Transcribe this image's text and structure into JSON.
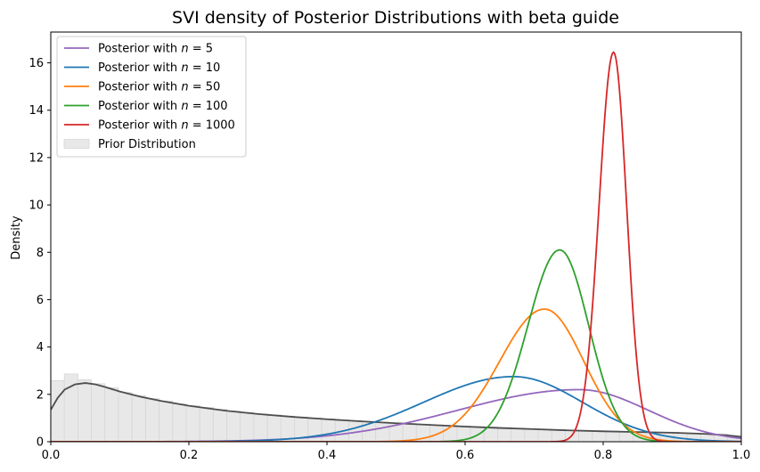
{
  "chart_data": {
    "type": "line",
    "title": "SVI density of Posterior Distributions with beta guide",
    "xlabel": "",
    "ylabel": "Density",
    "xlim": [
      0.0,
      1.0
    ],
    "ylim": [
      0,
      17.3
    ],
    "xticks": [
      0.0,
      0.2,
      0.4,
      0.6,
      0.8,
      1.0
    ],
    "xtick_labels": [
      "0.0",
      "0.2",
      "0.4",
      "0.6",
      "0.8",
      "1.0"
    ],
    "yticks": [
      0,
      2,
      4,
      6,
      8,
      10,
      12,
      14,
      16
    ],
    "ytick_labels": [
      "0",
      "2",
      "4",
      "6",
      "8",
      "10",
      "12",
      "14",
      "16"
    ],
    "legend_position": "top-left",
    "series": [
      {
        "name": "Posterior with",
        "n_label": "n = 5",
        "color": "#9467bd",
        "peak_x": 0.765,
        "peak_y": 2.2,
        "sd_left": 0.175,
        "sd_right": 0.1,
        "power": 2,
        "right_end_y": 0.22
      },
      {
        "name": "Posterior with",
        "n_label": "n = 10",
        "color": "#1f77b4",
        "peak_x": 0.67,
        "peak_y": 2.75,
        "sd_left": 0.13,
        "sd_right": 0.1,
        "power": 2
      },
      {
        "name": "Posterior with",
        "n_label": "n = 50",
        "color": "#ff7f0e",
        "peak_x": 0.715,
        "peak_y": 5.6,
        "sd_left": 0.065,
        "sd_right": 0.057,
        "power": 2
      },
      {
        "name": "Posterior with",
        "n_label": "n = 100",
        "color": "#2ca02c",
        "peak_x": 0.737,
        "peak_y": 8.1,
        "sd_left": 0.046,
        "sd_right": 0.042,
        "power": 2
      },
      {
        "name": "Posterior with",
        "n_label": "n = 1000",
        "color": "#d62728",
        "peak_x": 0.815,
        "peak_y": 16.45,
        "sd_left": 0.021,
        "sd_right": 0.019,
        "power": 2
      }
    ],
    "prior": {
      "label": "Prior Distribution",
      "kde_color": "#4d4d4d",
      "hist_fill": "#e8e8e8",
      "hist_edge": "#d6d6d6",
      "kde_points": [
        [
          0.0,
          1.35
        ],
        [
          0.01,
          1.85
        ],
        [
          0.02,
          2.2
        ],
        [
          0.035,
          2.42
        ],
        [
          0.05,
          2.48
        ],
        [
          0.065,
          2.42
        ],
        [
          0.08,
          2.3
        ],
        [
          0.1,
          2.12
        ],
        [
          0.13,
          1.9
        ],
        [
          0.16,
          1.72
        ],
        [
          0.2,
          1.52
        ],
        [
          0.25,
          1.32
        ],
        [
          0.3,
          1.17
        ],
        [
          0.35,
          1.05
        ],
        [
          0.4,
          0.95
        ],
        [
          0.45,
          0.86
        ],
        [
          0.5,
          0.78
        ],
        [
          0.55,
          0.71
        ],
        [
          0.6,
          0.64
        ],
        [
          0.65,
          0.58
        ],
        [
          0.7,
          0.53
        ],
        [
          0.75,
          0.48
        ],
        [
          0.8,
          0.44
        ],
        [
          0.85,
          0.41
        ],
        [
          0.9,
          0.38
        ],
        [
          0.95,
          0.33
        ],
        [
          0.98,
          0.27
        ],
        [
          1.0,
          0.2
        ]
      ],
      "hist_bins": [
        [
          0.0,
          2.58
        ],
        [
          0.0196,
          2.86
        ],
        [
          0.0392,
          2.62
        ],
        [
          0.0588,
          2.45
        ],
        [
          0.0784,
          2.28
        ],
        [
          0.098,
          2.08
        ],
        [
          0.1176,
          1.95
        ],
        [
          0.1373,
          1.82
        ],
        [
          0.1569,
          1.72
        ],
        [
          0.1765,
          1.6
        ],
        [
          0.1961,
          1.52
        ],
        [
          0.2157,
          1.45
        ],
        [
          0.2353,
          1.37
        ],
        [
          0.2549,
          1.3
        ],
        [
          0.2745,
          1.24
        ],
        [
          0.2941,
          1.17
        ],
        [
          0.3137,
          1.13
        ],
        [
          0.3333,
          1.08
        ],
        [
          0.3529,
          1.04
        ],
        [
          0.3725,
          1.0
        ],
        [
          0.3922,
          0.96
        ],
        [
          0.4118,
          0.92
        ],
        [
          0.4314,
          0.89
        ],
        [
          0.451,
          0.86
        ],
        [
          0.4706,
          0.83
        ],
        [
          0.4902,
          0.8
        ],
        [
          0.5098,
          0.77
        ],
        [
          0.5294,
          0.74
        ],
        [
          0.549,
          0.71
        ],
        [
          0.5686,
          0.69
        ],
        [
          0.5882,
          0.66
        ],
        [
          0.6078,
          0.64
        ],
        [
          0.6275,
          0.62
        ],
        [
          0.6471,
          0.6
        ],
        [
          0.6667,
          0.57
        ],
        [
          0.6863,
          0.55
        ],
        [
          0.7059,
          0.53
        ],
        [
          0.7255,
          0.51
        ],
        [
          0.7451,
          0.49
        ],
        [
          0.7647,
          0.48
        ],
        [
          0.7843,
          0.46
        ],
        [
          0.8039,
          0.45
        ],
        [
          0.8235,
          0.43
        ],
        [
          0.8431,
          0.42
        ],
        [
          0.8627,
          0.4
        ],
        [
          0.8824,
          0.39
        ],
        [
          0.902,
          0.38
        ],
        [
          0.9216,
          0.36
        ],
        [
          0.9412,
          0.34
        ],
        [
          0.9608,
          0.31
        ],
        [
          0.9804,
          0.27
        ]
      ],
      "bin_width": 0.0196
    }
  }
}
